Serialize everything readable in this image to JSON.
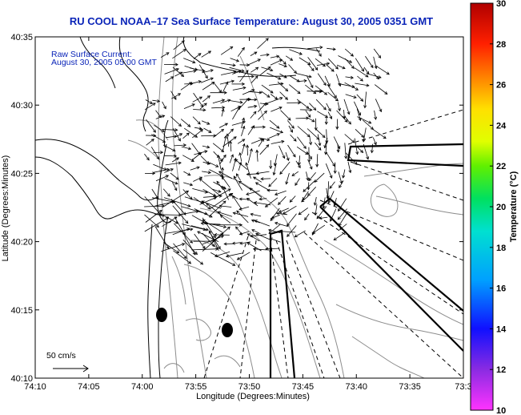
{
  "title": "RU COOL  NOAA–17  Sea Surface Temperature:  August 30, 2005 0351 GMT",
  "legend": {
    "line1": "Raw Surface Current:",
    "line2": "August 30, 2005 05:00 GMT"
  },
  "scale": {
    "label": "50 cm/s"
  },
  "axes": {
    "xlabel": "Longitude (Degrees:Minutes)",
    "ylabel": "Latitude (Degrees:Minutes)",
    "xticks": [
      "74:10",
      "74:05",
      "74:00",
      "73:55",
      "73:50",
      "73:45",
      "73:40",
      "73:35",
      "73:3"
    ],
    "yticks": [
      "40:35",
      "40:30",
      "40:25",
      "40:20",
      "40:15",
      "40:10"
    ]
  },
  "colorbar": {
    "label": "Temperature (°C)",
    "ticks": [
      "30",
      "28",
      "26",
      "24",
      "22",
      "20",
      "18",
      "16",
      "14",
      "12",
      "10"
    ],
    "range": [
      10,
      30
    ]
  },
  "colors": {
    "title": "#0a24b8",
    "coast": "#000000",
    "bathymetry": "#8c8c8c"
  }
}
